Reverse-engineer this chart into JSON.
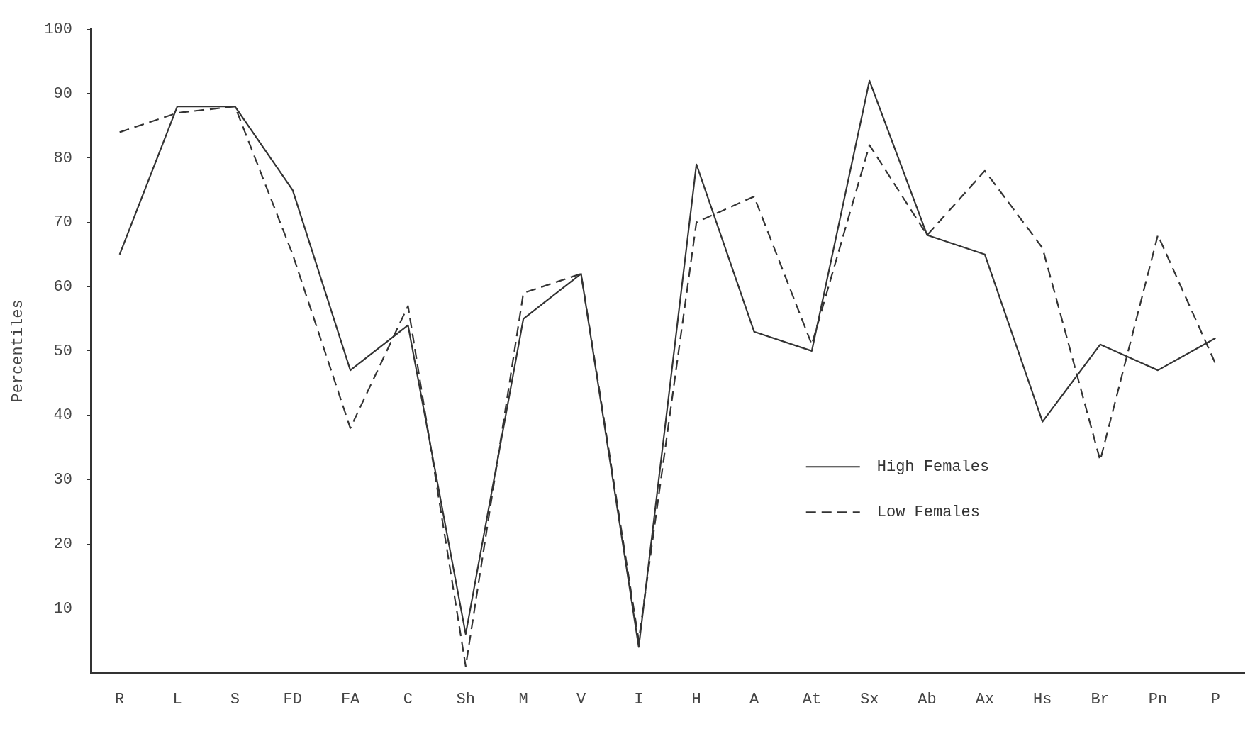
{
  "chart_data": {
    "type": "line",
    "ylabel": "Percentiles",
    "categories": [
      "R",
      "L",
      "S",
      "FD",
      "FA",
      "C",
      "Sh",
      "M",
      "V",
      "I",
      "H",
      "A",
      "At",
      "Sx",
      "Ab",
      "Ax",
      "Hs",
      "Br",
      "Pn",
      "P"
    ],
    "series": [
      {
        "name": "High Females",
        "color": "#333333",
        "line_style": "solid",
        "values": [
          65,
          88,
          88,
          75,
          47,
          54,
          6,
          55,
          62,
          4,
          79,
          53,
          50,
          92,
          68,
          65,
          39,
          51,
          47,
          52
        ]
      },
      {
        "name": "Low Females",
        "color": "#333333",
        "line_style": "dashed",
        "values": [
          84,
          87,
          88,
          65,
          38,
          57,
          1,
          59,
          62,
          5,
          70,
          74,
          51,
          82,
          68,
          78,
          66,
          33,
          68,
          48
        ]
      }
    ],
    "ylim": [
      0,
      100
    ],
    "yticks": [
      10,
      20,
      30,
      40,
      50,
      60,
      70,
      80,
      90,
      100
    ],
    "grid": false,
    "legend": "bottom right",
    "marker": "none"
  }
}
